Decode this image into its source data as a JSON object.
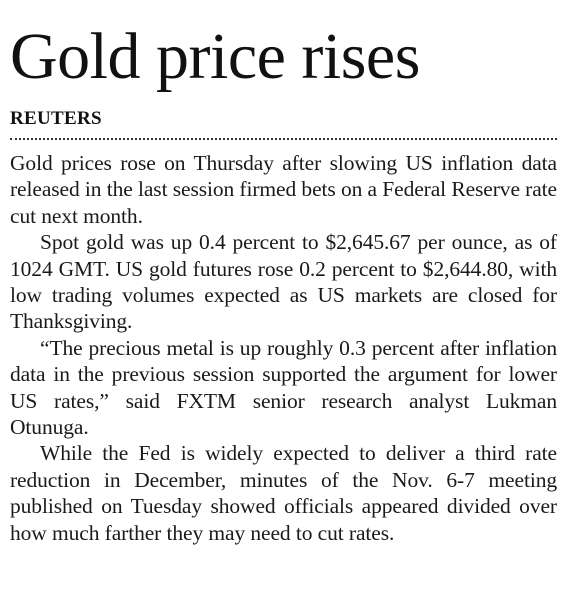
{
  "article": {
    "headline": "Gold price rises",
    "byline": "REUTERS",
    "paragraphs": [
      "Gold prices rose on Thursday after slowing US inflation data released in the last session firmed bets on a Federal Reserve rate cut next month.",
      "Spot gold was up 0.4 percent to $2,645.67 per ounce, as of 1024 GMT. US gold futures rose 0.2 percent to $2,644.80, with low trading volumes expected as US markets are closed for Thanksgiving.",
      "“The precious metal is up roughly 0.3 percent after inflation data in the previous session supported the argument for lower US rates,” said FXTM senior research analyst Lukman Otunuga.",
      "While the Fed is widely expected to deliver a third rate reduction in December, minutes of the Nov. 6-7 meeting published on Tuesday showed officials appeared divided over how much farther they may need to cut rates."
    ]
  }
}
